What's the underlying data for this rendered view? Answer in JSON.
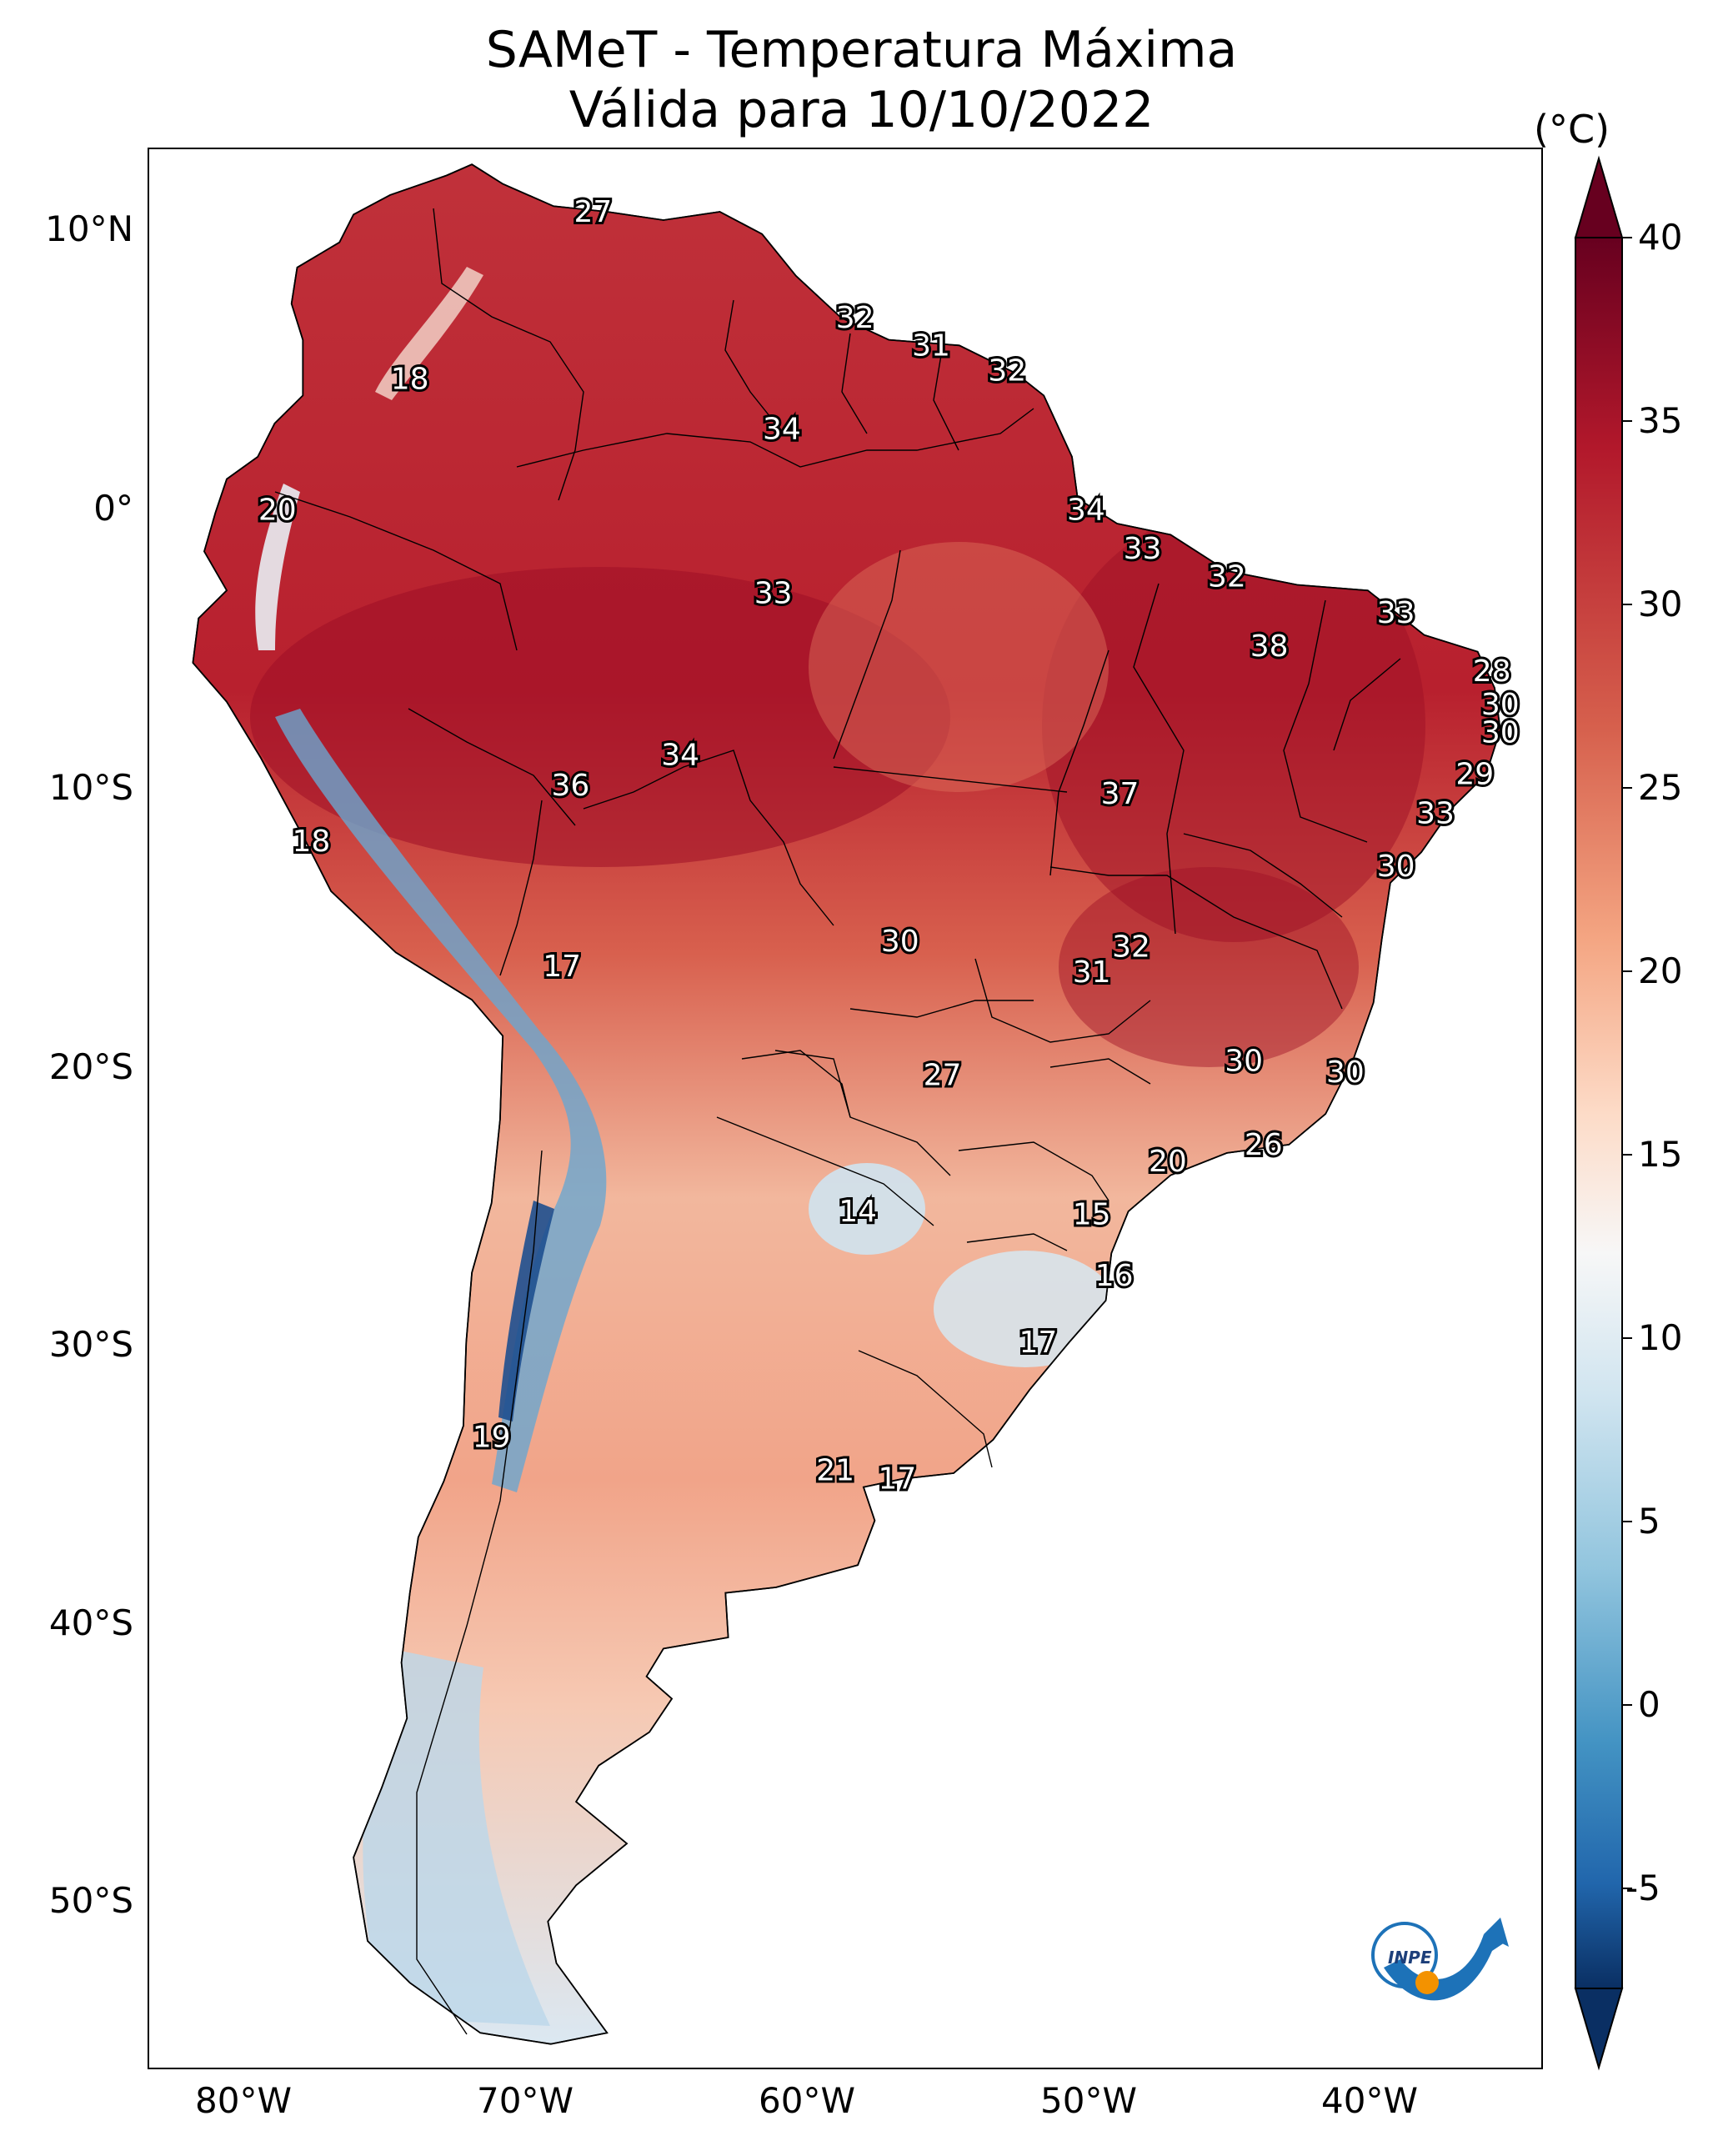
{
  "title": "SAMeT - Temperatura Máxima",
  "subtitle": "Válida para 10/10/2022",
  "colorbar": {
    "unit": "(°C)",
    "ticks": [
      "40",
      "35",
      "30",
      "25",
      "20",
      "15",
      "10",
      "5",
      "0",
      "-5"
    ],
    "min": -5,
    "max": 40,
    "colors": [
      "#0a2f63",
      "#2166ac",
      "#4393c3",
      "#92c5de",
      "#d1e5f0",
      "#f7f7f7",
      "#fddbc7",
      "#f4a582",
      "#d6604d",
      "#b2182b",
      "#67001f"
    ]
  },
  "axes": {
    "lat_labels": [
      "10°N",
      "0°",
      "10°S",
      "20°S",
      "30°S",
      "40°S",
      "50°S"
    ],
    "lon_labels": [
      "80°W",
      "70°W",
      "60°W",
      "50°W",
      "40°W"
    ]
  },
  "station_values": [
    {
      "label": "27",
      "lon": -67.0,
      "lat": 10.6
    },
    {
      "label": "18",
      "lon": -73.5,
      "lat": 4.6
    },
    {
      "label": "32",
      "lon": -57.7,
      "lat": 6.8
    },
    {
      "label": "31",
      "lon": -55.0,
      "lat": 5.8
    },
    {
      "label": "32",
      "lon": -52.3,
      "lat": 4.9
    },
    {
      "label": "34",
      "lon": -60.3,
      "lat": 2.8
    },
    {
      "label": "20",
      "lon": -78.2,
      "lat": -0.1
    },
    {
      "label": "34",
      "lon": -49.5,
      "lat": -0.1
    },
    {
      "label": "33",
      "lon": -47.5,
      "lat": -1.5
    },
    {
      "label": "32",
      "lon": -44.5,
      "lat": -2.5
    },
    {
      "label": "33",
      "lon": -38.5,
      "lat": -3.8
    },
    {
      "label": "33",
      "lon": -60.6,
      "lat": -3.1
    },
    {
      "label": "38",
      "lon": -43.0,
      "lat": -5.0
    },
    {
      "label": "28",
      "lon": -35.1,
      "lat": -5.9
    },
    {
      "label": "30",
      "lon": -34.8,
      "lat": -7.1
    },
    {
      "label": "30",
      "lon": -34.8,
      "lat": -8.1
    },
    {
      "label": "34",
      "lon": -63.9,
      "lat": -8.9
    },
    {
      "label": "36",
      "lon": -67.8,
      "lat": -10.0
    },
    {
      "label": "37",
      "lon": -48.3,
      "lat": -10.3
    },
    {
      "label": "29",
      "lon": -35.7,
      "lat": -9.6
    },
    {
      "label": "33",
      "lon": -37.1,
      "lat": -11.0
    },
    {
      "label": "18",
      "lon": -77.0,
      "lat": -12.0
    },
    {
      "label": "30",
      "lon": -38.5,
      "lat": -12.9
    },
    {
      "label": "30",
      "lon": -56.1,
      "lat": -15.6
    },
    {
      "label": "32",
      "lon": -47.9,
      "lat": -15.8
    },
    {
      "label": "31",
      "lon": -49.3,
      "lat": -16.7
    },
    {
      "label": "17",
      "lon": -68.1,
      "lat": -16.5
    },
    {
      "label": "30",
      "lon": -43.9,
      "lat": -19.9
    },
    {
      "label": "30",
      "lon": -40.3,
      "lat": -20.3
    },
    {
      "label": "27",
      "lon": -54.6,
      "lat": -20.4
    },
    {
      "label": "20",
      "lon": -46.6,
      "lat": -23.5
    },
    {
      "label": "26",
      "lon": -43.2,
      "lat": -22.9
    },
    {
      "label": "14",
      "lon": -57.6,
      "lat": -25.3
    },
    {
      "label": "15",
      "lon": -49.3,
      "lat": -25.4
    },
    {
      "label": "16",
      "lon": -48.5,
      "lat": -27.6
    },
    {
      "label": "17",
      "lon": -51.2,
      "lat": -30.0
    },
    {
      "label": "19",
      "lon": -70.6,
      "lat": -33.4
    },
    {
      "label": "21",
      "lon": -58.4,
      "lat": -34.6
    },
    {
      "label": "17",
      "lon": -56.2,
      "lat": -34.9
    }
  ]
}
